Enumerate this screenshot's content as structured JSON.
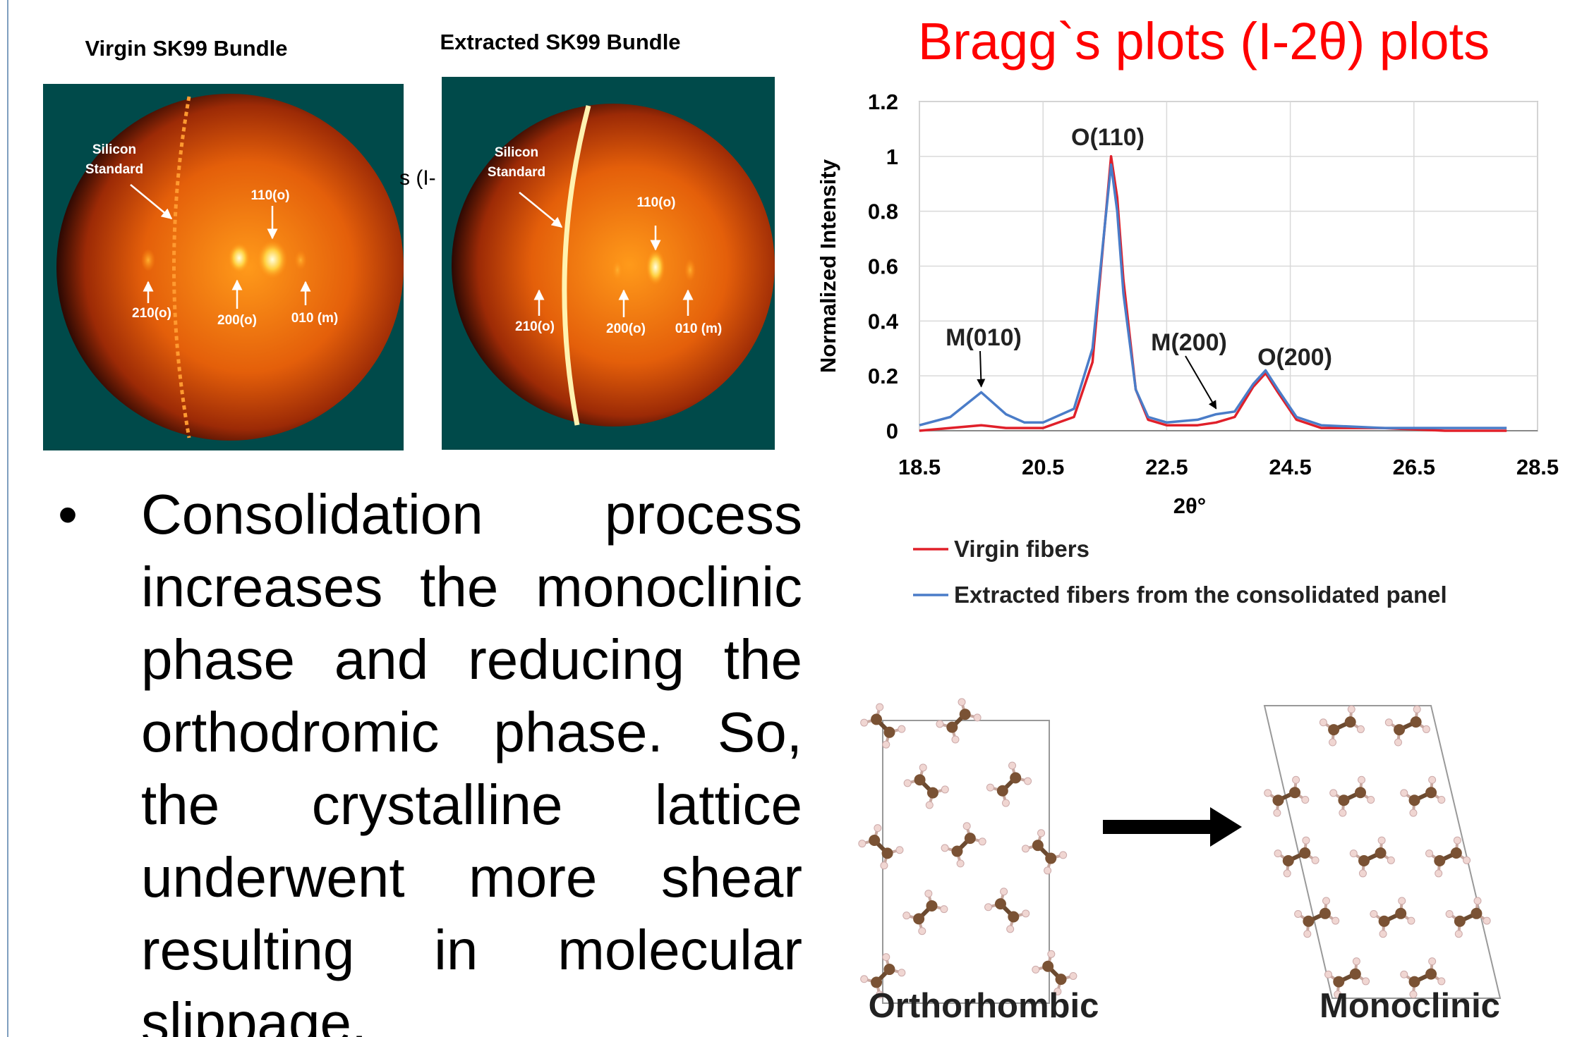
{
  "panels": [
    {
      "title": "Virgin SK99 Bundle",
      "labels": [
        "Silicon",
        "Standard",
        "110(o)",
        "210(o)",
        "200(o)",
        "010 (m)"
      ]
    },
    {
      "title": "Extracted SK99 Bundle",
      "labels": [
        "Silicon",
        "Standard",
        "110(o)",
        "210(o)",
        "200(o)",
        "010 (m)"
      ]
    }
  ],
  "stray_text": "s (I-",
  "chart_data": {
    "type": "line",
    "title": "Bragg`s plots (I-2θ) plots",
    "x_label": "2θ°",
    "y_label": "Normalized Intensity",
    "x": [
      18.5,
      19,
      19.5,
      19.9,
      20.2,
      20.5,
      21,
      21.3,
      21.5,
      21.6,
      21.7,
      21.8,
      22,
      22.2,
      22.5,
      23,
      23.3,
      23.6,
      23.9,
      24.1,
      24.3,
      24.6,
      25,
      26,
      27,
      28
    ],
    "series": [
      {
        "name": "Virgin fibers",
        "color": "#e0202a",
        "values": [
          0,
          0.01,
          0.02,
          0.01,
          0.01,
          0.01,
          0.05,
          0.25,
          0.75,
          1.0,
          0.85,
          0.55,
          0.15,
          0.04,
          0.02,
          0.02,
          0.03,
          0.05,
          0.16,
          0.21,
          0.14,
          0.04,
          0.01,
          0.01,
          0,
          0
        ]
      },
      {
        "name": "Extracted fibers from the consolidated panel",
        "color": "#4a7cc8",
        "values": [
          0.02,
          0.05,
          0.14,
          0.06,
          0.03,
          0.03,
          0.08,
          0.3,
          0.75,
          0.97,
          0.8,
          0.5,
          0.15,
          0.05,
          0.03,
          0.04,
          0.06,
          0.07,
          0.17,
          0.22,
          0.15,
          0.05,
          0.02,
          0.01,
          0.01,
          0.01
        ]
      }
    ],
    "xlim": [
      18.5,
      28.5
    ],
    "ylim": [
      0,
      1.2
    ],
    "xticks": [
      18.5,
      20.5,
      22.5,
      24.5,
      26.5,
      28.5
    ],
    "yticks": [
      0,
      0.2,
      0.4,
      0.6,
      0.8,
      1,
      1.2
    ],
    "grid": true,
    "legend": "bottom",
    "annotations": [
      {
        "text": "M(010)",
        "x": 19.5,
        "y": 0.14
      },
      {
        "text": "O(110)",
        "x": 21.6,
        "y": 1.0
      },
      {
        "text": "M(200)",
        "x": 23.3,
        "y": 0.06
      },
      {
        "text": "O(200)",
        "x": 24.1,
        "y": 0.22
      }
    ]
  },
  "bullet": "Consolidation process increases the monoclinic phase and reducing the orthodromic phase. So, the crystalline lattice underwent more shear resulting in molecular slippage.",
  "structures": {
    "from": "Orthorhombic",
    "to": "Monoclinic"
  }
}
